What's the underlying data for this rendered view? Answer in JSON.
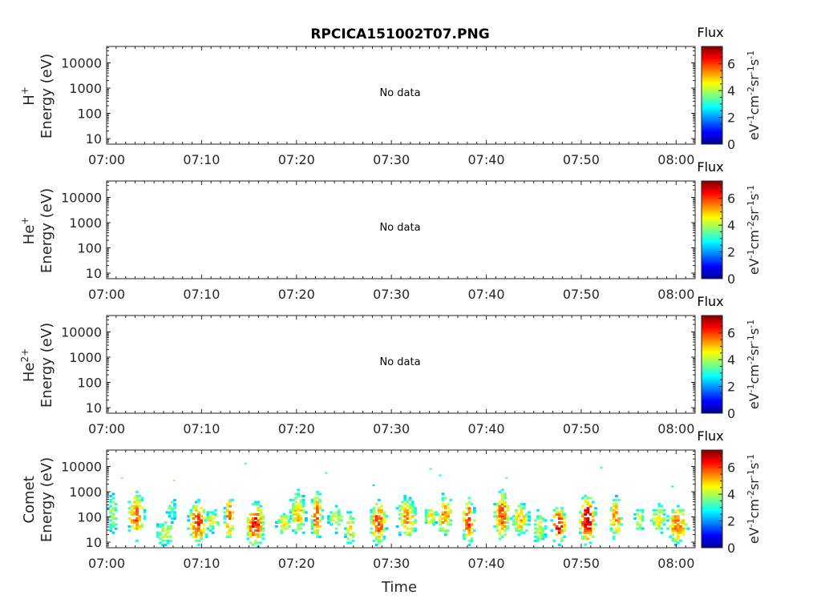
{
  "title": "RPCICA151002T07.PNG",
  "panels": [
    {
      "species": "H",
      "charge": "+",
      "ylabel": "Energy (eV)",
      "message": "No data"
    },
    {
      "species": "He",
      "charge": "+",
      "ylabel": "Energy (eV)",
      "message": "No data"
    },
    {
      "species": "He",
      "charge": "2+",
      "ylabel": "Energy (eV)",
      "message": "No data"
    },
    {
      "species": "Comet",
      "charge": "",
      "ylabel": "Energy (eV)",
      "message": ""
    }
  ],
  "x_ticks": [
    "07:00",
    "07:10",
    "07:20",
    "07:30",
    "07:40",
    "07:50",
    "08:00"
  ],
  "y_ticks": [
    "10",
    "100",
    "1000",
    "10000"
  ],
  "xlabel": "Time",
  "colorbar": {
    "title": "Flux",
    "label_parts": [
      "eV",
      "-1",
      "cm",
      "-2",
      "sr",
      "-1",
      "s",
      "-1"
    ],
    "ticks": [
      "0",
      "2",
      "4",
      "6"
    ],
    "range": [
      0,
      7.3
    ],
    "colormap": "jet"
  },
  "chart_data": {
    "type": "heatmap",
    "title": "RPCICA151002T07.PNG",
    "x_range_minutes_after_0700": [
      0,
      62
    ],
    "y_range_eV": [
      6,
      45000
    ],
    "y_scale": "log",
    "grid": false,
    "panels": [
      {
        "name": "H+",
        "data": "No data"
      },
      {
        "name": "He+",
        "data": "No data"
      },
      {
        "name": "He2+",
        "data": "No data"
      },
      {
        "name": "Comet",
        "note": "time-energy spectrogram; blobs approximate flux clusters (value = peak log flux)",
        "blobs": [
          {
            "t": 0.5,
            "elo": 20,
            "ehi": 700,
            "val": 4.0
          },
          {
            "t": 3.0,
            "elo": 15,
            "ehi": 700,
            "val": 5.8
          },
          {
            "t": 6.0,
            "elo": 8,
            "ehi": 60,
            "val": 4.3
          },
          {
            "t": 6.7,
            "elo": 70,
            "ehi": 500,
            "val": 3.6
          },
          {
            "t": 9.5,
            "elo": 10,
            "ehi": 300,
            "val": 6.0
          },
          {
            "t": 11.0,
            "elo": 30,
            "ehi": 150,
            "val": 4.5
          },
          {
            "t": 12.8,
            "elo": 15,
            "ehi": 600,
            "val": 5.7
          },
          {
            "t": 15.5,
            "elo": 7,
            "ehi": 300,
            "val": 6.3
          },
          {
            "t": 18.5,
            "elo": 25,
            "ehi": 120,
            "val": 4.8
          },
          {
            "t": 20.0,
            "elo": 20,
            "ehi": 900,
            "val": 5.0
          },
          {
            "t": 22.0,
            "elo": 15,
            "ehi": 700,
            "val": 5.9
          },
          {
            "t": 24.0,
            "elo": 30,
            "ehi": 200,
            "val": 4.4
          },
          {
            "t": 25.5,
            "elo": 8,
            "ehi": 120,
            "val": 5.0
          },
          {
            "t": 28.5,
            "elo": 10,
            "ehi": 300,
            "val": 6.1
          },
          {
            "t": 31.5,
            "elo": 15,
            "ehi": 500,
            "val": 5.3
          },
          {
            "t": 34.0,
            "elo": 40,
            "ehi": 200,
            "val": 4.6
          },
          {
            "t": 35.5,
            "elo": 20,
            "ehi": 600,
            "val": 5.5
          },
          {
            "t": 38.0,
            "elo": 10,
            "ehi": 400,
            "val": 6.2
          },
          {
            "t": 41.5,
            "elo": 15,
            "ehi": 800,
            "val": 6.0
          },
          {
            "t": 43.5,
            "elo": 20,
            "ehi": 300,
            "val": 5.0
          },
          {
            "t": 45.5,
            "elo": 8,
            "ehi": 150,
            "val": 4.2
          },
          {
            "t": 47.5,
            "elo": 10,
            "ehi": 200,
            "val": 6.6
          },
          {
            "t": 50.5,
            "elo": 10,
            "ehi": 500,
            "val": 6.8
          },
          {
            "t": 53.5,
            "elo": 15,
            "ehi": 500,
            "val": 5.4
          },
          {
            "t": 56.0,
            "elo": 30,
            "ehi": 200,
            "val": 4.5
          },
          {
            "t": 58.0,
            "elo": 20,
            "ehi": 250,
            "val": 4.7
          },
          {
            "t": 60.0,
            "elo": 10,
            "ehi": 200,
            "val": 5.6
          }
        ],
        "isolated_points": [
          {
            "t": 1.5,
            "e": 3500,
            "val": 3.8
          },
          {
            "t": 7.0,
            "e": 2800,
            "val": 3.9
          },
          {
            "t": 14.5,
            "e": 13000,
            "val": 3.3
          },
          {
            "t": 23.0,
            "e": 5500,
            "val": 3.1
          },
          {
            "t": 28.0,
            "e": 1800,
            "val": 2.5
          },
          {
            "t": 34.0,
            "e": 8000,
            "val": 3.0
          },
          {
            "t": 35.0,
            "e": 4500,
            "val": 2.8
          },
          {
            "t": 42.0,
            "e": 3500,
            "val": 3.3
          },
          {
            "t": 52.0,
            "e": 9000,
            "val": 3.0
          },
          {
            "t": 59.5,
            "e": 1600,
            "val": 2.6
          }
        ]
      }
    ]
  }
}
